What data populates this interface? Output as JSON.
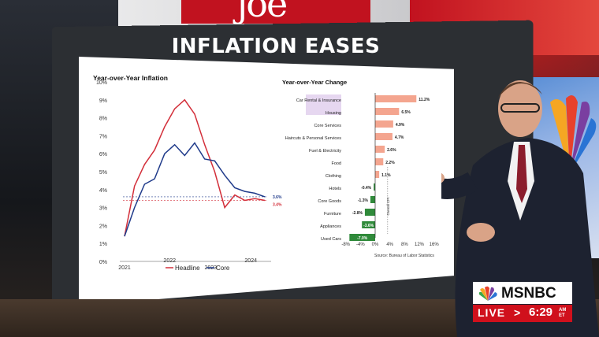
{
  "network": {
    "brand": "MSNBC",
    "live_label": "LIVE",
    "time": "6:29",
    "time_suffix_top": "AM",
    "time_suffix_bottom": "ET"
  },
  "board": {
    "title": "INFLATION EASES"
  },
  "colors": {
    "headline": "#d32f3a",
    "core": "#1f3a8a",
    "bar_positive": "#f4a58f",
    "bar_negative": "#2f8a3a",
    "live_red": "#d0101c"
  },
  "chart_data": [
    {
      "type": "line",
      "title": "Year-over-Year Inflation",
      "ylim": [
        0,
        10
      ],
      "yticks": [
        "0%",
        "1%",
        "2%",
        "3%",
        "4%",
        "5%",
        "6%",
        "7%",
        "8%",
        "9%",
        "10%"
      ],
      "xticks": [
        "2021",
        "2022",
        "2023",
        "2024"
      ],
      "x": [
        "2021-01",
        "2021-04",
        "2021-07",
        "2021-10",
        "2022-01",
        "2022-03",
        "2022-06",
        "2022-09",
        "2022-12",
        "2023-03",
        "2023-06",
        "2023-09",
        "2023-12",
        "2024-03",
        "2024-05"
      ],
      "series": [
        {
          "name": "Headline",
          "values": [
            1.4,
            4.2,
            5.4,
            6.2,
            7.5,
            8.5,
            9.0,
            8.2,
            6.5,
            5.0,
            3.0,
            3.7,
            3.4,
            3.5,
            3.4
          ]
        },
        {
          "name": "Core",
          "values": [
            1.4,
            3.0,
            4.3,
            4.6,
            6.0,
            6.5,
            5.9,
            6.6,
            5.7,
            5.6,
            4.8,
            4.1,
            3.9,
            3.8,
            3.6
          ]
        }
      ],
      "end_labels": [
        "3.6%",
        "3.4%"
      ]
    },
    {
      "type": "bar",
      "title": "Year-over-Year Change",
      "categories": [
        "Car Rental & Insurance",
        "Housing",
        "Core Services",
        "Haircuts & Personal Services",
        "Fuel & Electricity",
        "Food",
        "Clothing",
        "Hotels",
        "Core Goods",
        "Furniture",
        "Appliances",
        "Used Cars"
      ],
      "values": [
        11.2,
        6.5,
        4.9,
        4.7,
        2.6,
        2.2,
        1.1,
        -0.4,
        -1.3,
        -2.8,
        -3.6,
        -7.0
      ],
      "value_labels": [
        "11.2%",
        "6.5%",
        "4.9%",
        "4.7%",
        "2.6%",
        "2.2%",
        "1.1%",
        "-0.4%",
        "-1.3%",
        "-2.8%",
        "-3.6%",
        "-7.0%"
      ],
      "xlim": [
        -8,
        16
      ],
      "xticks": [
        "-8%",
        "-4%",
        "0%",
        "4%",
        "8%",
        "12%",
        "16%"
      ],
      "reference_label": "Overall CPI",
      "source": "Source: Bureau of Labor Statistics"
    }
  ]
}
